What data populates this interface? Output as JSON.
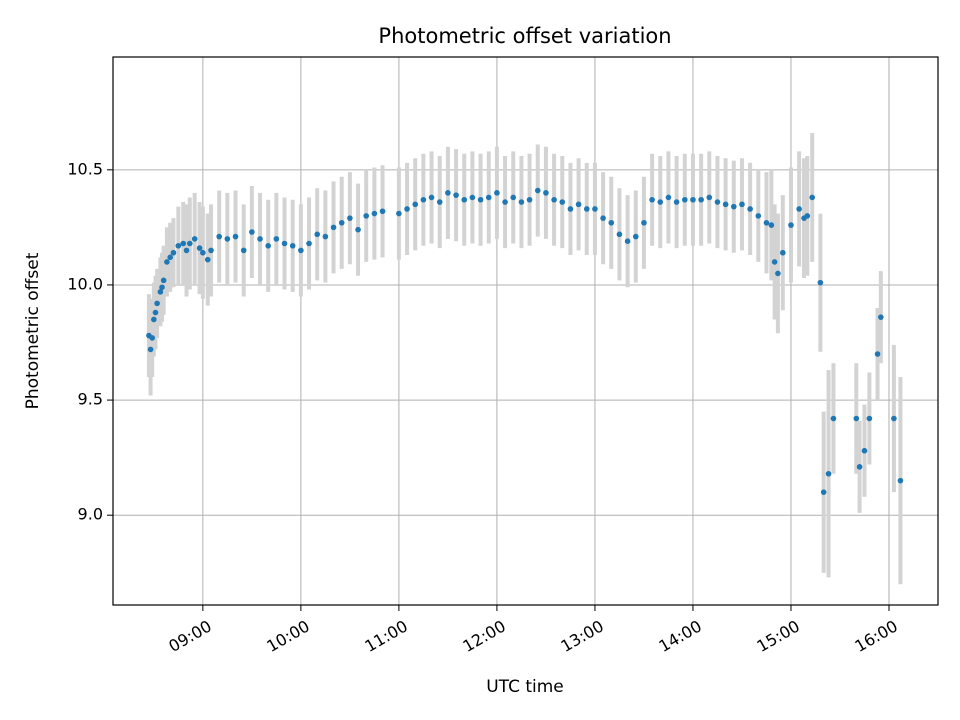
{
  "chart_data": {
    "type": "scatter",
    "title": "Photometric offset variation",
    "xlabel": "UTC time",
    "ylabel": "Photometric offset",
    "x_axis_kind": "time-of-day",
    "xlim": [
      "08:05",
      "16:30"
    ],
    "ylim": [
      8.61,
      10.99
    ],
    "xticks": [
      "09:00",
      "10:00",
      "11:00",
      "12:00",
      "13:00",
      "14:00",
      "15:00",
      "16:00"
    ],
    "yticks": [
      9.0,
      9.5,
      10.0,
      10.5
    ],
    "grid": true,
    "colors": {
      "points": "#1f77b4",
      "error_bars": "#d3d3d3",
      "grid": "#b0b0b0"
    },
    "series": [
      {
        "marker": "point",
        "error_bars": true,
        "x": [
          "08:27",
          "08:28",
          "08:29",
          "08:30",
          "08:31",
          "08:32",
          "08:34",
          "08:35",
          "08:36",
          "08:38",
          "08:40",
          "08:42",
          "08:45",
          "08:48",
          "08:50",
          "08:52",
          "08:55",
          "08:58",
          "09:00",
          "09:03",
          "09:05",
          "09:10",
          "09:15",
          "09:20",
          "09:25",
          "09:30",
          "09:35",
          "09:40",
          "09:45",
          "09:50",
          "09:55",
          "10:00",
          "10:05",
          "10:10",
          "10:15",
          "10:20",
          "10:25",
          "10:30",
          "10:35",
          "10:40",
          "10:45",
          "10:50",
          "11:00",
          "11:05",
          "11:10",
          "11:15",
          "11:20",
          "11:25",
          "11:30",
          "11:35",
          "11:40",
          "11:45",
          "11:50",
          "11:55",
          "12:00",
          "12:05",
          "12:10",
          "12:15",
          "12:20",
          "12:25",
          "12:30",
          "12:35",
          "12:40",
          "12:45",
          "12:50",
          "12:55",
          "13:00",
          "13:05",
          "13:10",
          "13:15",
          "13:20",
          "13:25",
          "13:30",
          "13:35",
          "13:40",
          "13:45",
          "13:50",
          "13:55",
          "14:00",
          "14:05",
          "14:10",
          "14:15",
          "14:20",
          "14:25",
          "14:30",
          "14:35",
          "14:40",
          "14:45",
          "14:48",
          "14:50",
          "14:52",
          "14:55",
          "15:00",
          "15:05",
          "15:08",
          "15:10",
          "15:13",
          "15:18",
          "15:20",
          "15:23",
          "15:26",
          "15:40",
          "15:42",
          "15:45",
          "15:48",
          "15:53",
          "15:55",
          "16:03",
          "16:07"
        ],
        "y": [
          9.78,
          9.72,
          9.77,
          9.85,
          9.88,
          9.92,
          9.97,
          9.99,
          10.02,
          10.1,
          10.12,
          10.14,
          10.17,
          10.18,
          10.15,
          10.18,
          10.2,
          10.16,
          10.14,
          10.11,
          10.15,
          10.21,
          10.2,
          10.21,
          10.15,
          10.23,
          10.2,
          10.17,
          10.2,
          10.18,
          10.17,
          10.15,
          10.18,
          10.22,
          10.21,
          10.25,
          10.27,
          10.29,
          10.24,
          10.3,
          10.31,
          10.32,
          10.31,
          10.33,
          10.35,
          10.37,
          10.38,
          10.36,
          10.4,
          10.39,
          10.37,
          10.38,
          10.37,
          10.38,
          10.4,
          10.36,
          10.38,
          10.36,
          10.37,
          10.41,
          10.4,
          10.37,
          10.36,
          10.33,
          10.35,
          10.33,
          10.33,
          10.29,
          10.27,
          10.22,
          10.19,
          10.21,
          10.27,
          10.37,
          10.36,
          10.38,
          10.36,
          10.37,
          10.37,
          10.37,
          10.38,
          10.36,
          10.35,
          10.34,
          10.35,
          10.33,
          10.3,
          10.27,
          10.26,
          10.1,
          10.05,
          10.14,
          10.26,
          10.33,
          10.29,
          10.3,
          10.38,
          10.01,
          9.1,
          9.18,
          9.42,
          9.42,
          9.21,
          9.28,
          9.42,
          9.7,
          9.86,
          9.42,
          9.15
        ],
        "err": [
          0.18,
          0.2,
          0.17,
          0.16,
          0.16,
          0.15,
          0.15,
          0.15,
          0.15,
          0.15,
          0.15,
          0.15,
          0.17,
          0.18,
          0.2,
          0.2,
          0.2,
          0.2,
          0.2,
          0.2,
          0.2,
          0.2,
          0.2,
          0.2,
          0.2,
          0.2,
          0.2,
          0.2,
          0.2,
          0.2,
          0.2,
          0.2,
          0.2,
          0.2,
          0.2,
          0.2,
          0.2,
          0.2,
          0.2,
          0.2,
          0.2,
          0.2,
          0.2,
          0.2,
          0.2,
          0.2,
          0.2,
          0.2,
          0.2,
          0.2,
          0.2,
          0.2,
          0.2,
          0.2,
          0.2,
          0.2,
          0.2,
          0.2,
          0.2,
          0.2,
          0.2,
          0.2,
          0.2,
          0.2,
          0.2,
          0.2,
          0.2,
          0.2,
          0.2,
          0.2,
          0.2,
          0.2,
          0.2,
          0.2,
          0.2,
          0.2,
          0.2,
          0.2,
          0.2,
          0.2,
          0.2,
          0.2,
          0.2,
          0.2,
          0.2,
          0.2,
          0.2,
          0.22,
          0.24,
          0.25,
          0.26,
          0.25,
          0.25,
          0.25,
          0.26,
          0.26,
          0.28,
          0.3,
          0.35,
          0.45,
          0.24,
          0.24,
          0.2,
          0.2,
          0.2,
          0.2,
          0.2,
          0.32,
          0.45
        ]
      }
    ]
  }
}
